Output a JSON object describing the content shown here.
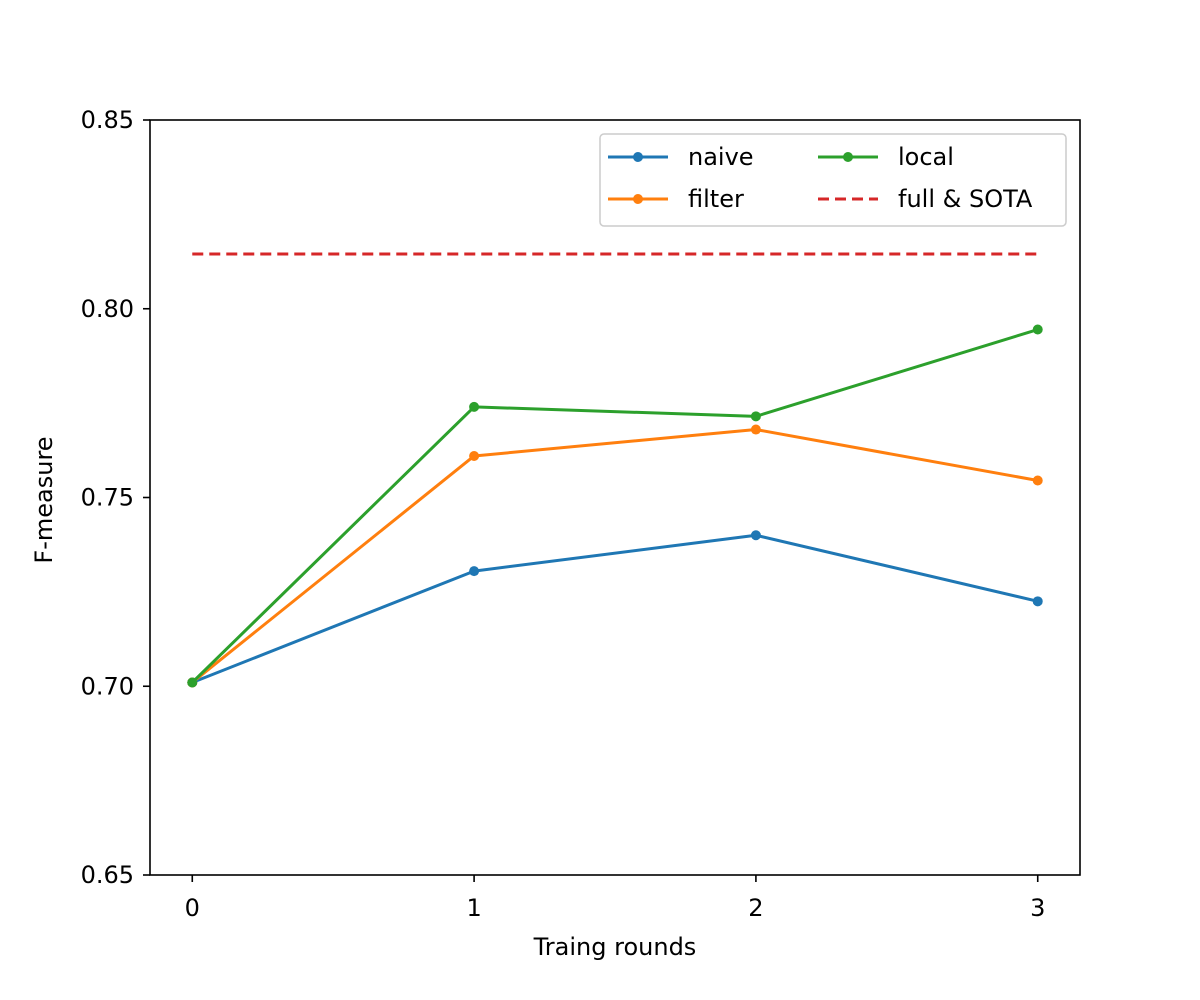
{
  "chart_data": {
    "type": "line",
    "title": "",
    "xlabel": "Traing rounds",
    "ylabel": "F-measure",
    "x": [
      0,
      1,
      2,
      3
    ],
    "xticks": [
      "0",
      "1",
      "2",
      "3"
    ],
    "yticks": [
      "0.65",
      "0.70",
      "0.75",
      "0.80",
      "0.85"
    ],
    "ylim": [
      0.65,
      0.85
    ],
    "xlim": [
      -0.15,
      3.15
    ],
    "grid": false,
    "legend_position": "upper-right",
    "legend_columns": 2,
    "series": [
      {
        "name": "naive",
        "color": "#1f77b4",
        "style": "solid-marker",
        "values": [
          0.701,
          0.7305,
          0.74,
          0.7225
        ]
      },
      {
        "name": "filter",
        "color": "#ff7f0e",
        "style": "solid-marker",
        "values": [
          0.701,
          0.761,
          0.768,
          0.7545
        ]
      },
      {
        "name": "local",
        "color": "#2ca02c",
        "style": "solid-marker",
        "values": [
          0.701,
          0.774,
          0.7715,
          0.7945
        ]
      },
      {
        "name": "full & SOTA",
        "color": "#d62728",
        "style": "dashed",
        "values": [
          0.8145,
          0.8145,
          0.8145,
          0.8145
        ]
      }
    ]
  }
}
